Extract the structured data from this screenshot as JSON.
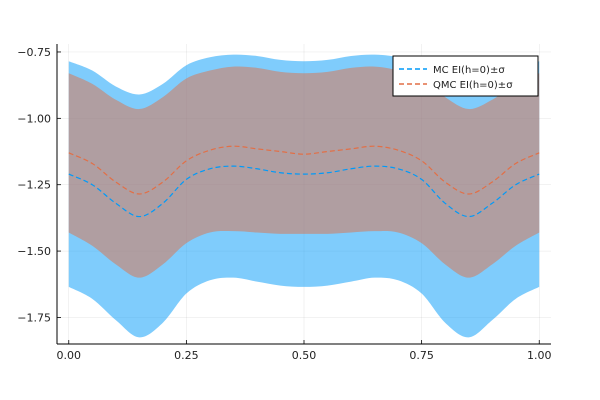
{
  "chart_data": {
    "type": "line",
    "title": "",
    "xlabel": "",
    "ylabel": "",
    "xlim": [
      -0.025,
      1.025
    ],
    "ylim": [
      -1.85,
      -0.72
    ],
    "x_ticks": [
      0.0,
      0.25,
      0.5,
      0.75,
      1.0
    ],
    "x_tick_labels": [
      "0.00",
      "0.25",
      "0.50",
      "0.75",
      "1.00"
    ],
    "y_ticks": [
      -1.75,
      -1.5,
      -1.25,
      -1.0,
      -0.75
    ],
    "y_tick_labels": [
      "−1.75",
      "−1.50",
      "−1.25",
      "−1.00",
      "−0.75"
    ],
    "grid": true,
    "legend_position": "top-right",
    "x": [
      0.0,
      0.05,
      0.1,
      0.15,
      0.2,
      0.25,
      0.3,
      0.35,
      0.4,
      0.45,
      0.5,
      0.55,
      0.6,
      0.65,
      0.7,
      0.75,
      0.8,
      0.85,
      0.9,
      0.95,
      1.0
    ],
    "series": [
      {
        "name": "MC EI(h=0)±σ",
        "color": "#009af9",
        "line_style": "dashed",
        "mean": [
          -1.21,
          -1.25,
          -1.32,
          -1.37,
          -1.32,
          -1.23,
          -1.19,
          -1.18,
          -1.19,
          -1.205,
          -1.21,
          -1.205,
          -1.19,
          -1.18,
          -1.19,
          -1.23,
          -1.32,
          -1.37,
          -1.32,
          -1.25,
          -1.21
        ],
        "upper": [
          -0.785,
          -0.82,
          -0.88,
          -0.91,
          -0.87,
          -0.8,
          -0.77,
          -0.76,
          -0.765,
          -0.78,
          -0.785,
          -0.78,
          -0.765,
          -0.76,
          -0.77,
          -0.8,
          -0.87,
          -0.91,
          -0.88,
          -0.82,
          -0.785
        ],
        "lower": [
          -1.635,
          -1.68,
          -1.76,
          -1.825,
          -1.77,
          -1.66,
          -1.61,
          -1.6,
          -1.615,
          -1.63,
          -1.635,
          -1.63,
          -1.615,
          -1.6,
          -1.61,
          -1.66,
          -1.77,
          -1.825,
          -1.76,
          -1.68,
          -1.635
        ]
      },
      {
        "name": "QMC EI(h=0)±σ",
        "color": "#e26f46",
        "line_style": "dashed",
        "mean": [
          -1.13,
          -1.17,
          -1.24,
          -1.285,
          -1.24,
          -1.16,
          -1.12,
          -1.105,
          -1.115,
          -1.125,
          -1.135,
          -1.125,
          -1.115,
          -1.105,
          -1.12,
          -1.16,
          -1.24,
          -1.285,
          -1.24,
          -1.17,
          -1.13
        ],
        "upper": [
          -0.83,
          -0.87,
          -0.93,
          -0.965,
          -0.92,
          -0.85,
          -0.82,
          -0.805,
          -0.81,
          -0.825,
          -0.83,
          -0.825,
          -0.81,
          -0.805,
          -0.82,
          -0.85,
          -0.92,
          -0.965,
          -0.93,
          -0.87,
          -0.83
        ],
        "lower": [
          -1.43,
          -1.48,
          -1.55,
          -1.6,
          -1.55,
          -1.47,
          -1.43,
          -1.425,
          -1.43,
          -1.435,
          -1.435,
          -1.435,
          -1.43,
          -1.425,
          -1.43,
          -1.47,
          -1.55,
          -1.6,
          -1.55,
          -1.48,
          -1.43
        ]
      }
    ]
  }
}
